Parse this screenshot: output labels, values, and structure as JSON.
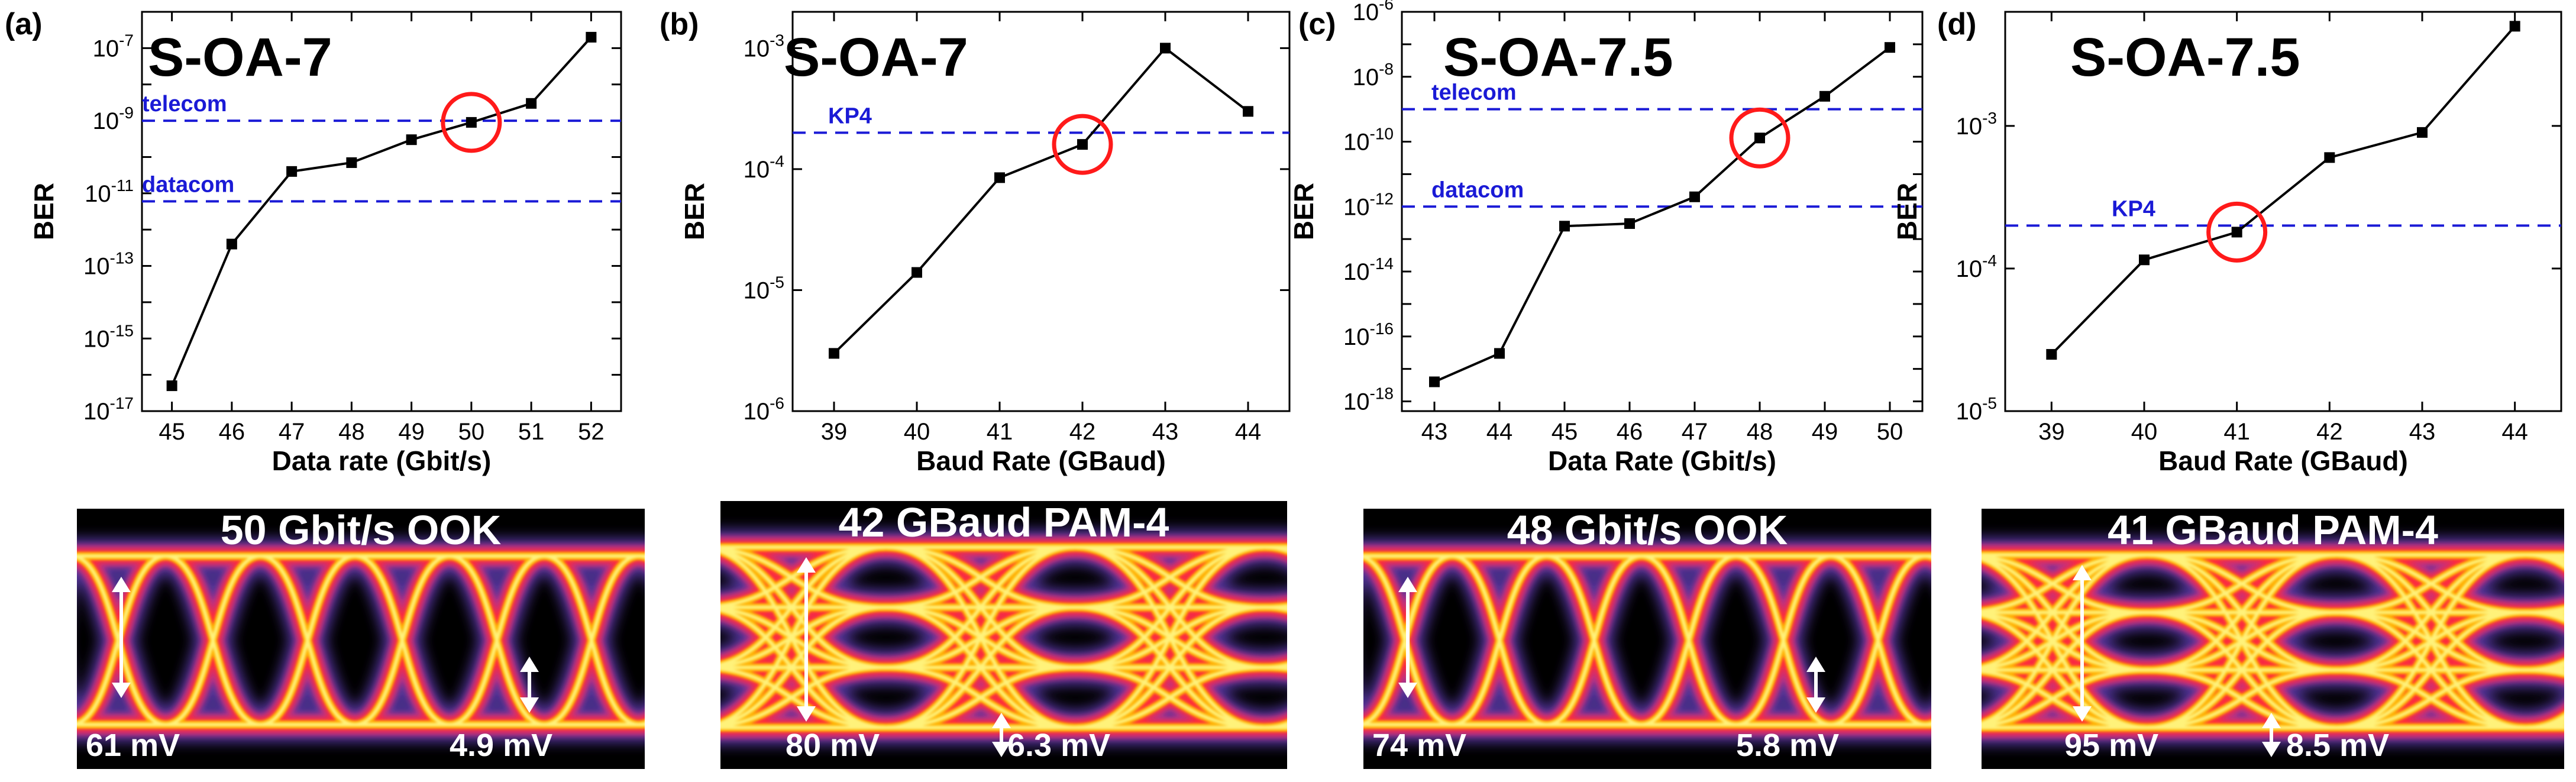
{
  "chart_data": [
    {
      "type": "line",
      "panel_label": "(a)",
      "title": "S-OA-7",
      "xlabel": "Data rate (Gbit/s)",
      "ylabel": "BER",
      "x": [
        45,
        46,
        47,
        48,
        49,
        50,
        51,
        52
      ],
      "y": [
        5e-17,
        4e-13,
        4e-11,
        7e-11,
        3e-10,
        9e-10,
        3e-09,
        2e-07
      ],
      "xlim": [
        44.5,
        52.5
      ],
      "xticks": [
        "45",
        "46",
        "47",
        "48",
        "49",
        "50",
        "51",
        "52"
      ],
      "yscale": "log",
      "ylim_log10": [
        -17,
        -6
      ],
      "ytick_labels": [
        {
          "mant": "10",
          "exp": "-17",
          "log": -17
        },
        {
          "mant": "10",
          "exp": "-15",
          "log": -15
        },
        {
          "mant": "10",
          "exp": "-13",
          "log": -13
        },
        {
          "mant": "10",
          "exp": "-11",
          "log": -11
        },
        {
          "mant": "10",
          "exp": "-9",
          "log": -9
        },
        {
          "mant": "10",
          "exp": "-7",
          "log": -7
        }
      ],
      "thresholds": [
        {
          "label": "telecom",
          "value": 1e-09
        },
        {
          "label": "datacom",
          "value": 6e-12
        }
      ],
      "highlight_x": 50
    },
    {
      "type": "line",
      "panel_label": "(b)",
      "title": "S-OA-7",
      "xlabel": "Baud Rate (GBaud)",
      "ylabel": "BER",
      "x": [
        39,
        40,
        41,
        42,
        43,
        44
      ],
      "y": [
        3e-06,
        1.4e-05,
        8.5e-05,
        0.00016,
        0.001,
        0.0003
      ],
      "xlim": [
        38.5,
        44.5
      ],
      "xticks": [
        "39",
        "40",
        "41",
        "42",
        "43",
        "44"
      ],
      "yscale": "log",
      "ylim_log10": [
        -6,
        -2.7
      ],
      "ytick_labels": [
        {
          "mant": "10",
          "exp": "-6",
          "log": -6
        },
        {
          "mant": "10",
          "exp": "-5",
          "log": -5
        },
        {
          "mant": "10",
          "exp": "-4",
          "log": -4
        },
        {
          "mant": "10",
          "exp": "-3",
          "log": -3
        }
      ],
      "thresholds": [
        {
          "label": "KP4",
          "value": 0.0002
        }
      ],
      "highlight_x": 42
    },
    {
      "type": "line",
      "panel_label": "(c)",
      "title": "S-OA-7.5",
      "xlabel": "Data Rate (Gbit/s)",
      "ylabel": "BER",
      "x": [
        43,
        44,
        45,
        46,
        47,
        48,
        49,
        50
      ],
      "y": [
        4e-18,
        3e-17,
        2.5e-13,
        3e-13,
        2e-12,
        1.3e-10,
        2.5e-09,
        8e-08
      ],
      "xlim": [
        42.5,
        50.5
      ],
      "xticks": [
        "43",
        "44",
        "45",
        "46",
        "47",
        "48",
        "49",
        "50"
      ],
      "yscale": "log",
      "ylim_log10": [
        -18.3,
        -6
      ],
      "ytick_labels": [
        {
          "mant": "10",
          "exp": "-18",
          "log": -18
        },
        {
          "mant": "10",
          "exp": "-16",
          "log": -16
        },
        {
          "mant": "10",
          "exp": "-14",
          "log": -14
        },
        {
          "mant": "10",
          "exp": "-12",
          "log": -12
        },
        {
          "mant": "10",
          "exp": "-10",
          "log": -10
        },
        {
          "mant": "10",
          "exp": "-8",
          "log": -8
        },
        {
          "mant": "10",
          "exp": "-6",
          "log": -6
        }
      ],
      "thresholds": [
        {
          "label": "telecom",
          "value": 1e-09
        },
        {
          "label": "datacom",
          "value": 1e-12
        }
      ],
      "highlight_x": 48
    },
    {
      "type": "line",
      "panel_label": "(d)",
      "title": "S-OA-7.5",
      "xlabel": "Baud Rate (GBaud)",
      "ylabel": "BER",
      "x": [
        39,
        40,
        41,
        42,
        43,
        44
      ],
      "y": [
        2.5e-05,
        0.000115,
        0.00018,
        0.0006,
        0.0009,
        0.005
      ],
      "xlim": [
        38.5,
        44.5
      ],
      "xticks": [
        "39",
        "40",
        "41",
        "42",
        "43",
        "44"
      ],
      "yscale": "log",
      "ylim_log10": [
        -5,
        -2.2
      ],
      "ytick_labels": [
        {
          "mant": "10",
          "exp": "-5",
          "log": -5
        },
        {
          "mant": "10",
          "exp": "-4",
          "log": -4
        },
        {
          "mant": "10",
          "exp": "-3",
          "log": -3
        }
      ],
      "thresholds": [
        {
          "label": "KP4",
          "value": 0.0002
        }
      ],
      "highlight_x": 41
    }
  ],
  "eye_diagrams": [
    {
      "title": "50 Gbit/s OOK",
      "format": "OOK",
      "left_value": "61 mV",
      "right_value": "4.9 mV"
    },
    {
      "title": "42 GBaud PAM-4",
      "format": "PAM4",
      "left_value": "80 mV",
      "right_value": "6.3 mV"
    },
    {
      "title": "48 Gbit/s OOK",
      "format": "OOK",
      "left_value": "74 mV",
      "right_value": "5.8 mV"
    },
    {
      "title": "41 GBaud PAM-4",
      "format": "PAM4",
      "left_value": "95 mV",
      "right_value": "8.5 mV"
    }
  ],
  "colors": {
    "series": "#000000",
    "threshold": "#1a1ad6",
    "highlight": "#ff1a1a",
    "eye_background": "#000000",
    "eye_core": "#fff27a",
    "eye_hot": "#ffb000",
    "eye_warm": "#ff2a3a",
    "eye_cool": "#c0308a",
    "eye_halo": "#5a3aa8",
    "annotation": "#ffffff"
  }
}
